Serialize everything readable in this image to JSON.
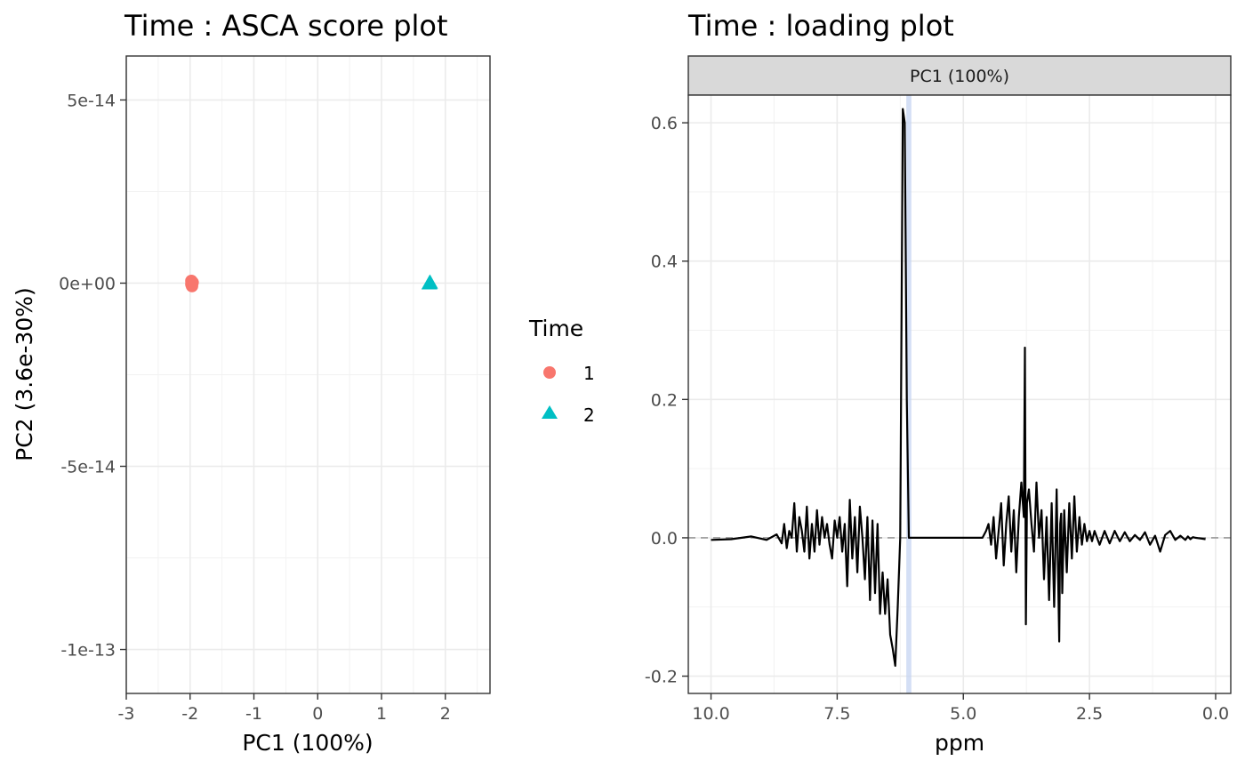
{
  "chart_data": [
    {
      "type": "scatter",
      "title": "Time : ASCA score plot",
      "xlabel": "PC1 (100%)",
      "ylabel": "PC2 (3.6e-30%)",
      "xlim": [
        -3,
        2.7
      ],
      "ylim": [
        -1.12e-13,
        6.2e-14
      ],
      "xticks": [
        -3,
        -2,
        -1,
        0,
        1,
        2
      ],
      "xtick_labels": [
        "-3",
        "-2",
        "-1",
        "0",
        "1",
        "2"
      ],
      "yticks": [
        5e-14,
        0,
        -5e-14,
        -1e-13
      ],
      "ytick_labels": [
        "5e-14",
        "0e+00",
        "-5e-14",
        "-1e-13"
      ],
      "grid": true,
      "legend_title": "Time",
      "legend_position": "right",
      "series": [
        {
          "name": "1",
          "color": "#F8766D",
          "marker": "circle",
          "points": [
            [
              -1.98,
              -3e-16
            ],
            [
              -1.97,
              -8e-16
            ],
            [
              -1.96,
              2e-16
            ],
            [
              -1.98,
              6e-16
            ]
          ]
        },
        {
          "name": "2",
          "color": "#00BFC4",
          "marker": "triangle",
          "points": [
            [
              1.75,
              0
            ],
            [
              1.76,
              2e-16
            ]
          ]
        }
      ]
    },
    {
      "type": "line",
      "title": "Time : loading plot",
      "facet_label": "PC1 (100%)",
      "xlabel": "ppm",
      "ylabel": "",
      "xlim": [
        10.45,
        -0.3
      ],
      "ylim": [
        -0.225,
        0.64
      ],
      "x_reversed": true,
      "xticks": [
        10.0,
        7.5,
        5.0,
        2.5,
        0.0
      ],
      "xtick_labels": [
        "10.0",
        "7.5",
        "5.0",
        "2.5",
        "0.0"
      ],
      "yticks": [
        -0.2,
        0.0,
        0.2,
        0.4,
        0.6
      ],
      "ytick_labels": [
        "-0.2",
        "0.0",
        "0.2",
        "0.4",
        "0.6"
      ],
      "grid": true,
      "highlight_band": [
        6.13,
        6.03
      ],
      "baseline_y": 0,
      "series": [
        {
          "color": "#000000",
          "x": [
            10.0,
            9.6,
            9.2,
            8.9,
            8.7,
            8.6,
            8.55,
            8.5,
            8.45,
            8.4,
            8.35,
            8.3,
            8.25,
            8.2,
            8.15,
            8.1,
            8.05,
            8.0,
            7.95,
            7.9,
            7.85,
            7.8,
            7.75,
            7.7,
            7.65,
            7.6,
            7.55,
            7.5,
            7.45,
            7.4,
            7.35,
            7.3,
            7.25,
            7.2,
            7.15,
            7.1,
            7.05,
            7.0,
            6.95,
            6.9,
            6.85,
            6.8,
            6.75,
            6.7,
            6.65,
            6.6,
            6.55,
            6.5,
            6.45,
            6.4,
            6.35,
            6.3,
            6.25,
            6.2,
            6.16,
            6.12,
            6.08,
            6.06,
            6.05,
            6.04,
            6.0,
            5.5,
            5.0,
            4.62,
            4.55,
            4.5,
            4.45,
            4.4,
            4.35,
            4.3,
            4.25,
            4.2,
            4.15,
            4.1,
            4.05,
            4.0,
            3.95,
            3.9,
            3.85,
            3.8,
            3.78,
            3.76,
            3.74,
            3.7,
            3.65,
            3.6,
            3.55,
            3.5,
            3.45,
            3.4,
            3.35,
            3.3,
            3.25,
            3.2,
            3.15,
            3.1,
            3.08,
            3.06,
            3.04,
            3.0,
            2.95,
            2.9,
            2.85,
            2.8,
            2.75,
            2.7,
            2.65,
            2.6,
            2.55,
            2.5,
            2.45,
            2.4,
            2.3,
            2.2,
            2.1,
            2.0,
            1.9,
            1.8,
            1.7,
            1.6,
            1.5,
            1.4,
            1.3,
            1.2,
            1.1,
            1.0,
            0.9,
            0.8,
            0.7,
            0.6,
            0.55,
            0.5,
            0.45,
            0.4,
            0.3,
            0.2
          ],
          "y": [
            -0.003,
            -0.002,
            0.002,
            -0.003,
            0.005,
            -0.008,
            0.02,
            -0.015,
            0.01,
            0.0,
            0.05,
            -0.02,
            0.03,
            0.01,
            -0.02,
            0.045,
            -0.03,
            0.02,
            -0.02,
            0.04,
            -0.01,
            0.03,
            0.0,
            0.02,
            -0.01,
            -0.03,
            0.025,
            0.0,
            0.03,
            -0.02,
            0.02,
            -0.07,
            0.055,
            -0.03,
            0.03,
            -0.05,
            0.045,
            0.0,
            -0.06,
            0.03,
            -0.09,
            0.025,
            -0.08,
            0.02,
            -0.11,
            -0.05,
            -0.11,
            -0.06,
            -0.14,
            -0.16,
            -0.185,
            -0.1,
            0.0,
            0.62,
            0.6,
            0.2,
            0.0,
            0.0,
            0.0,
            0.0,
            0.0,
            0.0,
            0.0,
            0.0,
            0.01,
            0.02,
            -0.01,
            0.03,
            -0.03,
            0.01,
            0.05,
            -0.04,
            0.02,
            0.06,
            -0.02,
            0.04,
            -0.05,
            0.03,
            0.08,
            0.03,
            0.275,
            -0.125,
            0.05,
            0.07,
            0.02,
            -0.02,
            0.08,
            0.0,
            0.04,
            -0.06,
            0.03,
            -0.09,
            0.05,
            -0.1,
            0.07,
            -0.15,
            0.02,
            0.035,
            -0.08,
            0.04,
            -0.05,
            0.05,
            -0.03,
            0.06,
            -0.02,
            0.03,
            -0.01,
            0.02,
            -0.005,
            0.01,
            -0.005,
            0.01,
            -0.01,
            0.01,
            -0.008,
            0.01,
            -0.005,
            0.008,
            -0.005,
            0.004,
            -0.003,
            0.008,
            -0.01,
            0.003,
            -0.02,
            0.004,
            0.01,
            -0.003,
            0.003,
            -0.003,
            0.002,
            -0.002,
            0.001,
            0.0,
            -0.001,
            -0.002
          ]
        }
      ]
    }
  ]
}
